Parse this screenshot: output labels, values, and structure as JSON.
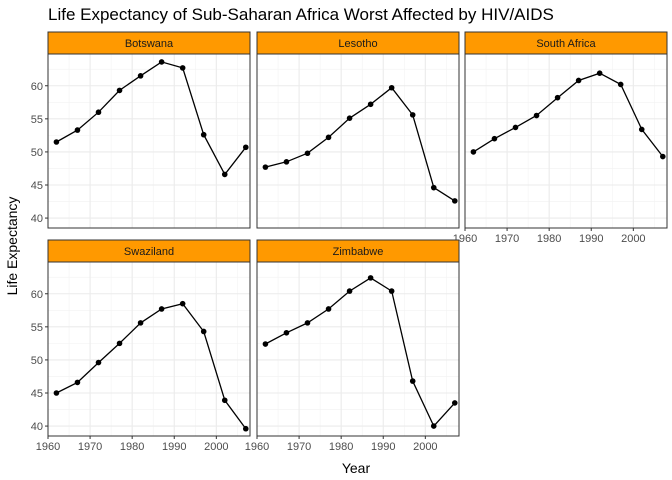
{
  "chart_data": {
    "type": "line",
    "title": "Life Expectancy of Sub-Saharan Africa Worst Affected by HIV/AIDS",
    "xlabel": "Year",
    "ylabel": "Life Expectancy",
    "xlim": [
      1960,
      2008
    ],
    "ylim": [
      38.5,
      64.8
    ],
    "x_ticks": [
      1960,
      1970,
      1980,
      1990,
      2000
    ],
    "y_ticks": [
      40,
      45,
      50,
      55,
      60
    ],
    "grid": true,
    "strip_color": "#FF9900",
    "line_color": "#000000",
    "x": [
      1962,
      1967,
      1972,
      1977,
      1982,
      1987,
      1992,
      1997,
      2002,
      2007
    ],
    "series": [
      {
        "name": "Botswana",
        "values": [
          51.5,
          53.3,
          56.0,
          59.3,
          61.5,
          63.6,
          62.7,
          52.6,
          46.6,
          50.7
        ]
      },
      {
        "name": "Lesotho",
        "values": [
          47.7,
          48.5,
          49.8,
          52.2,
          55.1,
          57.2,
          59.7,
          55.6,
          44.6,
          42.6
        ]
      },
      {
        "name": "South Africa",
        "values": [
          50.0,
          52.0,
          53.7,
          55.5,
          58.2,
          60.8,
          61.9,
          60.2,
          53.4,
          49.3
        ]
      },
      {
        "name": "Swaziland",
        "values": [
          45.0,
          46.6,
          49.6,
          52.5,
          55.6,
          57.7,
          58.5,
          54.3,
          43.9,
          39.6
        ]
      },
      {
        "name": "Zimbabwe",
        "values": [
          52.4,
          54.1,
          55.6,
          57.7,
          60.4,
          62.4,
          60.4,
          46.8,
          40.0,
          43.5
        ]
      }
    ]
  }
}
